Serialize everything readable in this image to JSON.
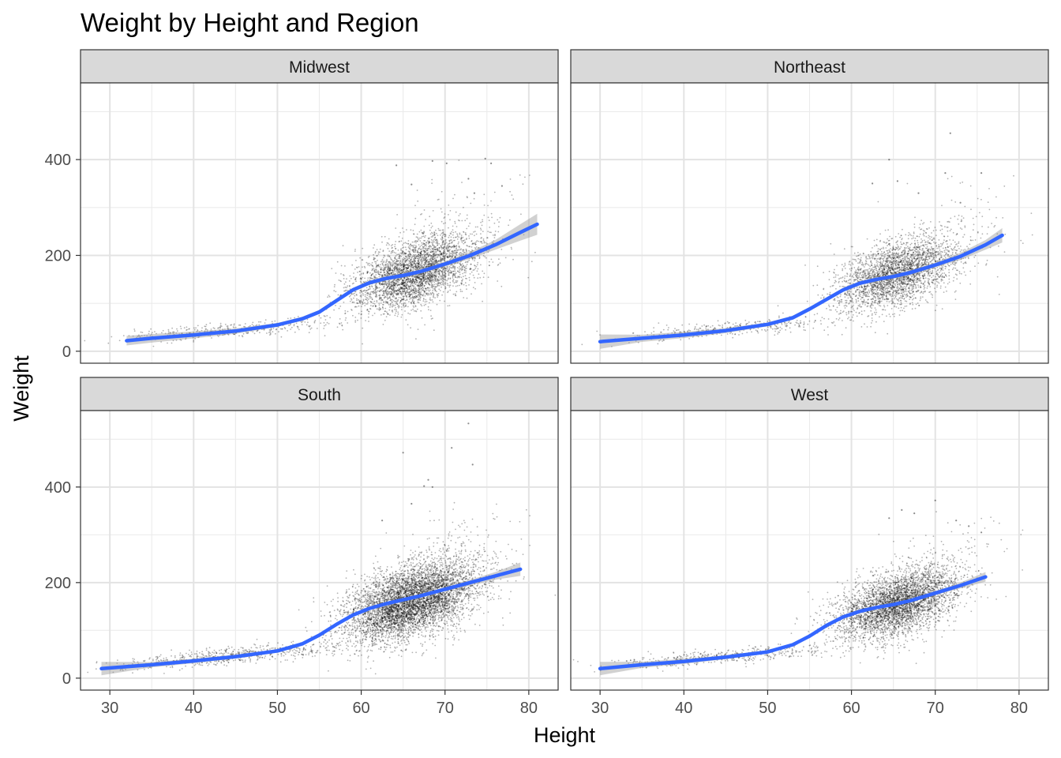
{
  "chart_data": {
    "type": "scatter",
    "title": "Weight by Height and Region",
    "xlabel": "Height",
    "ylabel": "Weight",
    "xlim": [
      26.5,
      83.5
    ],
    "ylim": [
      -25,
      560
    ],
    "x_ticks": [
      30,
      40,
      50,
      60,
      70,
      80
    ],
    "y_ticks": [
      0,
      200,
      400
    ],
    "grid": true,
    "facets": [
      {
        "name": "Midwest",
        "smooth": [
          [
            32,
            22
          ],
          [
            35,
            27
          ],
          [
            40,
            34
          ],
          [
            45,
            42
          ],
          [
            50,
            55
          ],
          [
            53,
            68
          ],
          [
            55,
            82
          ],
          [
            57,
            105
          ],
          [
            59,
            128
          ],
          [
            61,
            143
          ],
          [
            63,
            152
          ],
          [
            65,
            158
          ],
          [
            67,
            166
          ],
          [
            70,
            182
          ],
          [
            73,
            200
          ],
          [
            76,
            222
          ],
          [
            79,
            248
          ],
          [
            81,
            265
          ]
        ],
        "band": [
          [
            32,
            10
          ],
          [
            50,
            4
          ],
          [
            70,
            5
          ],
          [
            76,
            10
          ],
          [
            81,
            22
          ]
        ],
        "cloud": [
          {
            "n": 3500,
            "cx": 66.5,
            "cy": 165,
            "sx": 3.6,
            "sy": 34,
            "slope": 5.5
          },
          {
            "n": 380,
            "cx": 45,
            "cy": 45,
            "sx": 7,
            "sy": 8,
            "slope": 1.4
          },
          {
            "n": 160,
            "cx": 72,
            "cy": 240,
            "sx": 4,
            "sy": 55,
            "slope": 4
          }
        ],
        "outliers": [
          [
            64.2,
            388
          ],
          [
            68.5,
            397
          ],
          [
            70.2,
            392
          ],
          [
            74.8,
            402
          ],
          [
            75.5,
            392
          ],
          [
            72.8,
            360
          ],
          [
            73.5,
            330
          ],
          [
            76.8,
            345
          ],
          [
            66,
            348
          ]
        ]
      },
      {
        "name": "Northeast",
        "smooth": [
          [
            30,
            20
          ],
          [
            35,
            27
          ],
          [
            40,
            34
          ],
          [
            45,
            43
          ],
          [
            50,
            56
          ],
          [
            53,
            70
          ],
          [
            55,
            88
          ],
          [
            57,
            108
          ],
          [
            59,
            128
          ],
          [
            61,
            142
          ],
          [
            63,
            150
          ],
          [
            65,
            156
          ],
          [
            67,
            164
          ],
          [
            70,
            180
          ],
          [
            73,
            198
          ],
          [
            76,
            222
          ],
          [
            78,
            242
          ]
        ],
        "band": [
          [
            30,
            15
          ],
          [
            33,
            8
          ],
          [
            50,
            4
          ],
          [
            70,
            5
          ],
          [
            76,
            10
          ],
          [
            78,
            15
          ]
        ],
        "cloud": [
          {
            "n": 2800,
            "cx": 65.5,
            "cy": 162,
            "sx": 3.6,
            "sy": 34,
            "slope": 5.5
          },
          {
            "n": 350,
            "cx": 45,
            "cy": 46,
            "sx": 7,
            "sy": 8,
            "slope": 1.4
          },
          {
            "n": 140,
            "cx": 71,
            "cy": 235,
            "sx": 4,
            "sy": 55,
            "slope": 4
          }
        ],
        "outliers": [
          [
            64.5,
            400
          ],
          [
            71.8,
            455
          ],
          [
            71.2,
            372
          ],
          [
            75.5,
            372
          ],
          [
            65.5,
            355
          ],
          [
            62.5,
            350
          ],
          [
            68,
            330
          ],
          [
            73,
            310
          ]
        ]
      },
      {
        "name": "South",
        "smooth": [
          [
            29,
            20
          ],
          [
            35,
            28
          ],
          [
            40,
            36
          ],
          [
            45,
            45
          ],
          [
            50,
            57
          ],
          [
            53,
            72
          ],
          [
            55,
            90
          ],
          [
            57,
            112
          ],
          [
            59,
            132
          ],
          [
            61,
            146
          ],
          [
            63,
            156
          ],
          [
            65,
            164
          ],
          [
            67,
            172
          ],
          [
            70,
            186
          ],
          [
            73,
            200
          ],
          [
            76,
            214
          ],
          [
            79,
            228
          ]
        ],
        "band": [
          [
            29,
            14
          ],
          [
            33,
            6
          ],
          [
            50,
            3
          ],
          [
            70,
            4
          ],
          [
            76,
            8
          ],
          [
            79,
            14
          ]
        ],
        "cloud": [
          {
            "n": 5500,
            "cx": 66,
            "cy": 160,
            "sx": 3.8,
            "sy": 36,
            "slope": 5
          },
          {
            "n": 650,
            "cx": 45,
            "cy": 48,
            "sx": 7,
            "sy": 9,
            "slope": 1.5
          },
          {
            "n": 260,
            "cx": 71,
            "cy": 230,
            "sx": 4,
            "sy": 55,
            "slope": 4
          }
        ],
        "outliers": [
          [
            72.8,
            533
          ],
          [
            65,
            472
          ],
          [
            70.8,
            482
          ],
          [
            73.3,
            447
          ],
          [
            68,
            415
          ],
          [
            67.5,
            402
          ],
          [
            68.5,
            400
          ],
          [
            66,
            365
          ],
          [
            62.5,
            330
          ]
        ]
      },
      {
        "name": "West",
        "smooth": [
          [
            30,
            20
          ],
          [
            35,
            28
          ],
          [
            40,
            35
          ],
          [
            45,
            44
          ],
          [
            50,
            55
          ],
          [
            53,
            70
          ],
          [
            55,
            88
          ],
          [
            57,
            110
          ],
          [
            59,
            128
          ],
          [
            61,
            140
          ],
          [
            63,
            148
          ],
          [
            65,
            154
          ],
          [
            67,
            162
          ],
          [
            70,
            178
          ],
          [
            73,
            194
          ],
          [
            76,
            212
          ]
        ],
        "band": [
          [
            30,
            14
          ],
          [
            33,
            7
          ],
          [
            50,
            3
          ],
          [
            70,
            4
          ],
          [
            74,
            7
          ],
          [
            76,
            10
          ]
        ],
        "cloud": [
          {
            "n": 3800,
            "cx": 65.5,
            "cy": 155,
            "sx": 3.6,
            "sy": 32,
            "slope": 5
          },
          {
            "n": 450,
            "cx": 45,
            "cy": 46,
            "sx": 7,
            "sy": 8,
            "slope": 1.4
          },
          {
            "n": 170,
            "cx": 70,
            "cy": 220,
            "sx": 4,
            "sy": 50,
            "slope": 4
          }
        ],
        "outliers": [
          [
            70,
            372
          ],
          [
            66,
            352
          ],
          [
            67.5,
            345
          ],
          [
            64.5,
            335
          ],
          [
            72.5,
            330
          ],
          [
            74,
            318
          ],
          [
            75.5,
            305
          ]
        ]
      }
    ]
  }
}
